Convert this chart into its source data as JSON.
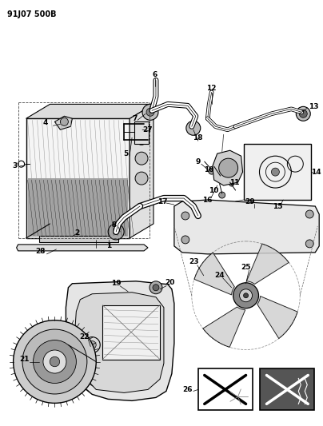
{
  "title": "91J07 500B",
  "bg_color": "#ffffff",
  "lc": "#000000",
  "fig_width": 4.04,
  "fig_height": 5.33,
  "dpi": 100
}
